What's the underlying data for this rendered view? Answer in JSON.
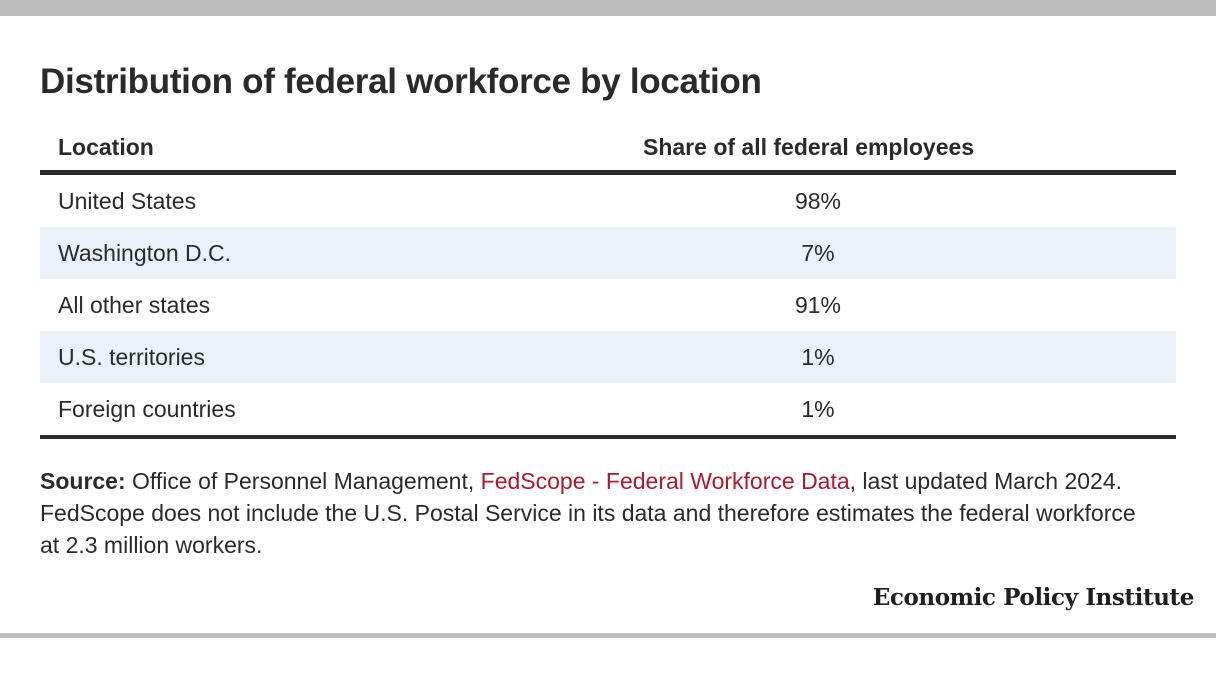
{
  "title": "Distribution of federal workforce by location",
  "chart_data": {
    "type": "table",
    "columns": [
      "Location",
      "Share of all federal employees"
    ],
    "rows": [
      {
        "location": "United States",
        "share": "98%"
      },
      {
        "location": "Washington D.C.",
        "share": "7%"
      },
      {
        "location": "All other states",
        "share": "91%"
      },
      {
        "location": "U.S. territories",
        "share": "1%"
      },
      {
        "location": "Foreign countries",
        "share": "1%"
      }
    ]
  },
  "source": {
    "label": "Source:",
    "text_before": " Office of Personnel Management, ",
    "link_text": "FedScope - Federal Workforce Data",
    "text_after": ", last updated March 2024. FedScope does not include the U.S. Postal Service in its data and therefore estimates the federal workforce at 2.3 million workers."
  },
  "logo": "Economic Policy Institute",
  "colors": {
    "row_shade": "#eaf1f9",
    "rule": "#2a2a2a",
    "link": "#b0182f",
    "frame_bar": "#bdbdbd"
  }
}
